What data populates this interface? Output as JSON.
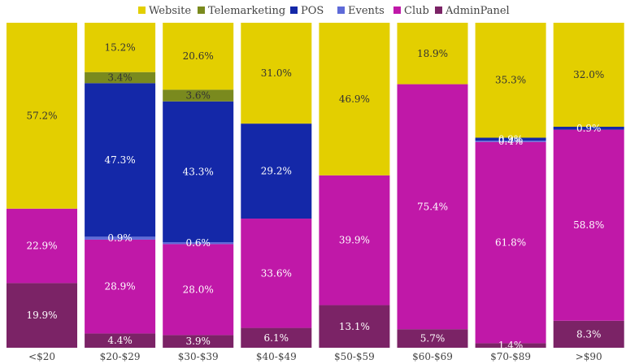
{
  "chart_data": {
    "type": "bar",
    "stacked": true,
    "normalized": true,
    "categories": [
      "<$20",
      "$20-$29",
      "$30-$39",
      "$40-$49",
      "$50-$59",
      "$60-$69",
      "$70-$89",
      ">$90"
    ],
    "series": [
      {
        "name": "AdminPanel",
        "color": "#7b2366",
        "values": [
          19.9,
          4.4,
          3.9,
          6.1,
          13.1,
          5.7,
          1.4,
          8.3
        ],
        "labels": [
          "19.9%",
          "4.4%",
          "3.9%",
          "6.1%",
          "13.1%",
          "5.7%",
          "1.4%",
          "8.3%"
        ]
      },
      {
        "name": "Club",
        "color": "#c018a8",
        "values": [
          22.9,
          28.9,
          28.0,
          33.6,
          39.9,
          75.4,
          61.8,
          58.8
        ],
        "labels": [
          "22.9%",
          "28.9%",
          "28.0%",
          "33.6%",
          "39.9%",
          "75.4%",
          "61.8%",
          "58.8%"
        ]
      },
      {
        "name": "Events",
        "color": "#5e6ad8",
        "values": [
          0,
          0.9,
          0.6,
          0,
          0,
          0,
          0.4,
          0
        ],
        "labels": [
          "",
          "0.9%",
          "0.6%",
          "",
          "",
          "",
          "0.4%",
          ""
        ]
      },
      {
        "name": "POS",
        "color": "#1428a8",
        "values": [
          0,
          47.3,
          43.3,
          29.2,
          0,
          0,
          0.9,
          0.9
        ],
        "labels": [
          "",
          "47.3%",
          "43.3%",
          "29.2%",
          "",
          "",
          "0.9%",
          "0.9%"
        ]
      },
      {
        "name": "Telemarketing",
        "color": "#7a8a1e",
        "values": [
          0,
          3.4,
          3.6,
          0,
          0,
          0,
          0,
          0
        ],
        "labels": [
          "",
          "3.4%",
          "3.6%",
          "",
          "",
          "",
          "",
          ""
        ]
      },
      {
        "name": "Website",
        "color": "#e3cf00",
        "values": [
          57.2,
          15.2,
          20.6,
          31.0,
          46.9,
          18.9,
          35.3,
          32.0
        ],
        "labels": [
          "57.2%",
          "15.2%",
          "20.6%",
          "31.0%",
          "46.9%",
          "18.9%",
          "35.3%",
          "32.0%"
        ]
      }
    ],
    "legend": {
      "position": "top",
      "order": [
        "Website",
        "Telemarketing",
        "POS",
        "Events",
        "Club",
        "AdminPanel"
      ]
    },
    "ylim": [
      0,
      100
    ],
    "grid": false,
    "title": "",
    "xlabel": "",
    "ylabel": ""
  }
}
